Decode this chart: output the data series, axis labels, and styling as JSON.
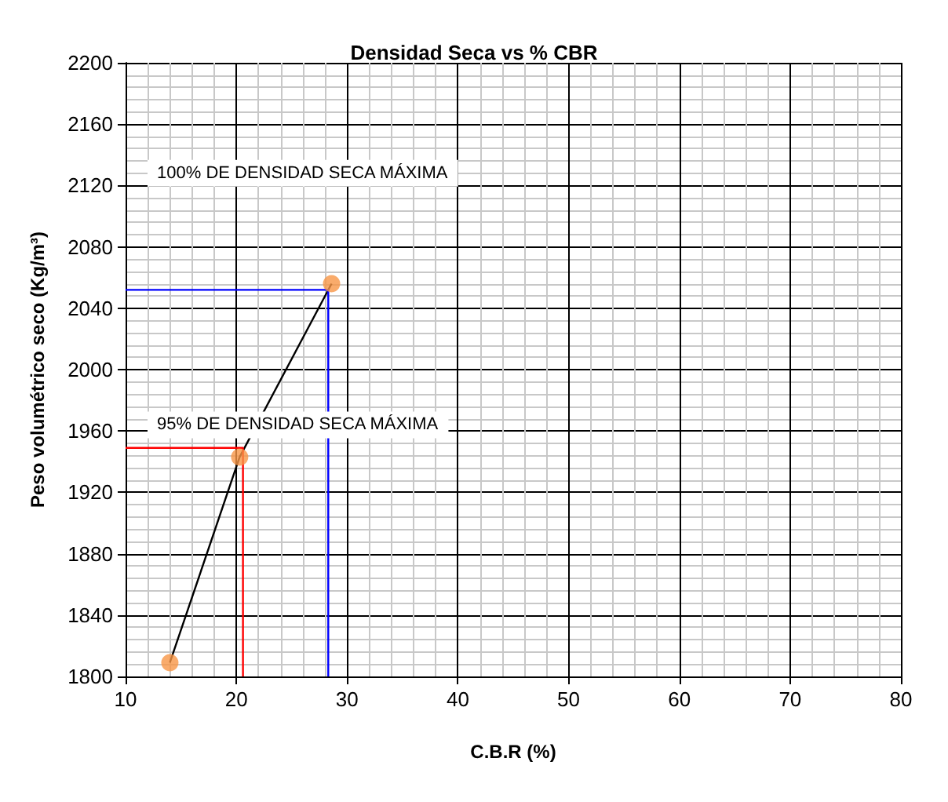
{
  "chart_data": {
    "type": "scatter",
    "title": "Densidad Seca vs % CBR",
    "xlabel": "C.B.R (%)",
    "ylabel": "Peso volumétrico seco (Kg/m³)",
    "xlim": [
      10,
      80
    ],
    "xticks": [
      10,
      20,
      30,
      40,
      50,
      60,
      70,
      80
    ],
    "ylim": [
      1800,
      2200
    ],
    "yticks": [
      1800,
      1840,
      1880,
      1920,
      1960,
      2000,
      2040,
      2080,
      2120,
      2160,
      2200
    ],
    "grid": true,
    "marker": "circle",
    "series": [
      {
        "type": "line",
        "color": "#000000",
        "marker": "none",
        "x": [
          14.0,
          20.3,
          28.6
        ],
        "values": [
          1809,
          1943,
          2056
        ]
      },
      {
        "color": "#f79646",
        "x": [
          14.0,
          20.3,
          28.6
        ],
        "values": [
          1809,
          1943,
          2056
        ]
      },
      {
        "type": "line",
        "color": "#0000ff",
        "marker": "none",
        "x": [
          10,
          28.3,
          28.3
        ],
        "values": [
          2052,
          2052,
          1800
        ]
      },
      {
        "type": "line",
        "color": "#ff0000",
        "marker": "none",
        "x": [
          10,
          20.6,
          20.6
        ],
        "values": [
          1949,
          1949,
          1800
        ]
      }
    ],
    "annotations": [
      "100% DE DENSIDAD SECA MÁXIMA",
      "95% DE DENSIDAD SECA MÁXIMA"
    ]
  }
}
